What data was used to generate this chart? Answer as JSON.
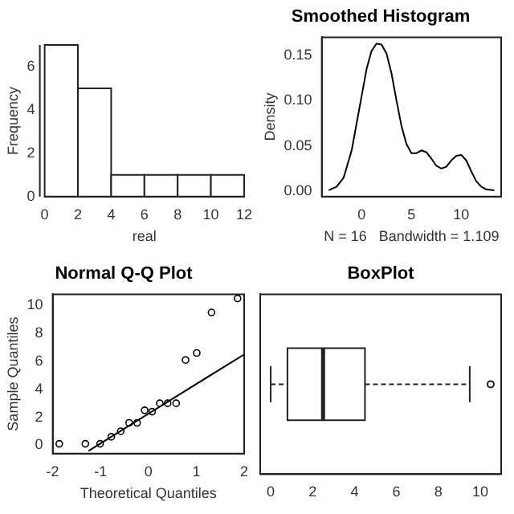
{
  "chart_data": [
    {
      "type": "histogram",
      "xlabel": "real",
      "ylabel": "Frequency",
      "bins": [
        0,
        2,
        4,
        6,
        8,
        10,
        12
      ],
      "values": [
        7,
        5,
        1,
        1,
        1,
        1
      ],
      "color": "#ffffff",
      "xlim": [
        0,
        12
      ],
      "xticks": [
        0,
        2,
        4,
        6,
        8,
        10,
        12
      ],
      "ylim": [
        0,
        7
      ],
      "yticks": [
        0,
        2,
        4,
        6
      ]
    },
    {
      "type": "line",
      "title": "Smoothed Histogram",
      "xlabel": "N = 16   Bandwidth = 1.109",
      "ylabel": "Density",
      "color": "#000000",
      "x": [
        -3.3,
        -2.5,
        -1.8,
        -1,
        -0.5,
        0,
        0.5,
        1,
        1.5,
        2,
        2.5,
        3,
        3.5,
        4,
        4.5,
        5,
        5.5,
        6,
        6.5,
        7,
        7.5,
        8,
        8.5,
        9,
        9.5,
        10,
        10.5,
        11,
        11.5,
        12,
        12.5,
        13.3
      ],
      "values": [
        0.001,
        0.005,
        0.015,
        0.045,
        0.075,
        0.105,
        0.135,
        0.155,
        0.163,
        0.162,
        0.152,
        0.13,
        0.1,
        0.072,
        0.052,
        0.042,
        0.042,
        0.045,
        0.043,
        0.036,
        0.028,
        0.025,
        0.027,
        0.034,
        0.039,
        0.04,
        0.034,
        0.022,
        0.011,
        0.005,
        0.002,
        0.001
      ],
      "xlim": [
        -4,
        14
      ],
      "xticks": [
        0,
        5,
        10
      ],
      "ylim": [
        -0.006,
        0.17
      ],
      "yticks": [
        {
          "value": 0,
          "label": "0.00"
        },
        {
          "value": 0.05,
          "label": "0.05"
        },
        {
          "value": 0.1,
          "label": "0.10"
        },
        {
          "value": 0.15,
          "label": "0.15"
        }
      ]
    },
    {
      "type": "scatter",
      "title": "Normal Q-Q Plot",
      "xlabel": "Theoretical Quantiles",
      "ylabel": "Sample Quantiles",
      "series": [
        {
          "type": "scatter",
          "marker": "circle",
          "color": "#000000",
          "x": [
            -1.863,
            -1.318,
            -1.01,
            -0.776,
            -0.579,
            -0.402,
            -0.237,
            -0.078,
            0.078,
            0.237,
            0.402,
            0.579,
            0.776,
            1.01,
            1.318,
            1.863
          ],
          "values": [
            0.1,
            0.1,
            0.1,
            0.6,
            1.0,
            1.6,
            1.6,
            2.5,
            2.4,
            3.0,
            3.0,
            3.0,
            6.1,
            6.6,
            9.5,
            10.5
          ]
        },
        {
          "type": "line",
          "color": "#000000",
          "x": [
            -1.25,
            2
          ],
          "values": [
            -0.4,
            6.5
          ]
        }
      ],
      "xlim": [
        -2,
        2
      ],
      "xticks": [
        -2,
        -1,
        0,
        1,
        2
      ],
      "ylim": [
        -0.6,
        10.8
      ],
      "yticks": [
        0,
        2,
        4,
        6,
        8,
        10
      ]
    },
    {
      "type": "box",
      "title": "BoxPlot",
      "orientation": "horizontal",
      "categories": [
        null
      ],
      "color": "#ffffff",
      "boxes": [
        {
          "low": 0,
          "q1": 0.8,
          "median": 2.5,
          "q3": 4.5,
          "high": 9.5,
          "outliers": [
            10.5
          ]
        }
      ],
      "xlim": [
        -0.5,
        11
      ],
      "xticks": [
        0,
        2,
        4,
        6,
        8,
        10
      ],
      "tick_labels": "x"
    }
  ]
}
